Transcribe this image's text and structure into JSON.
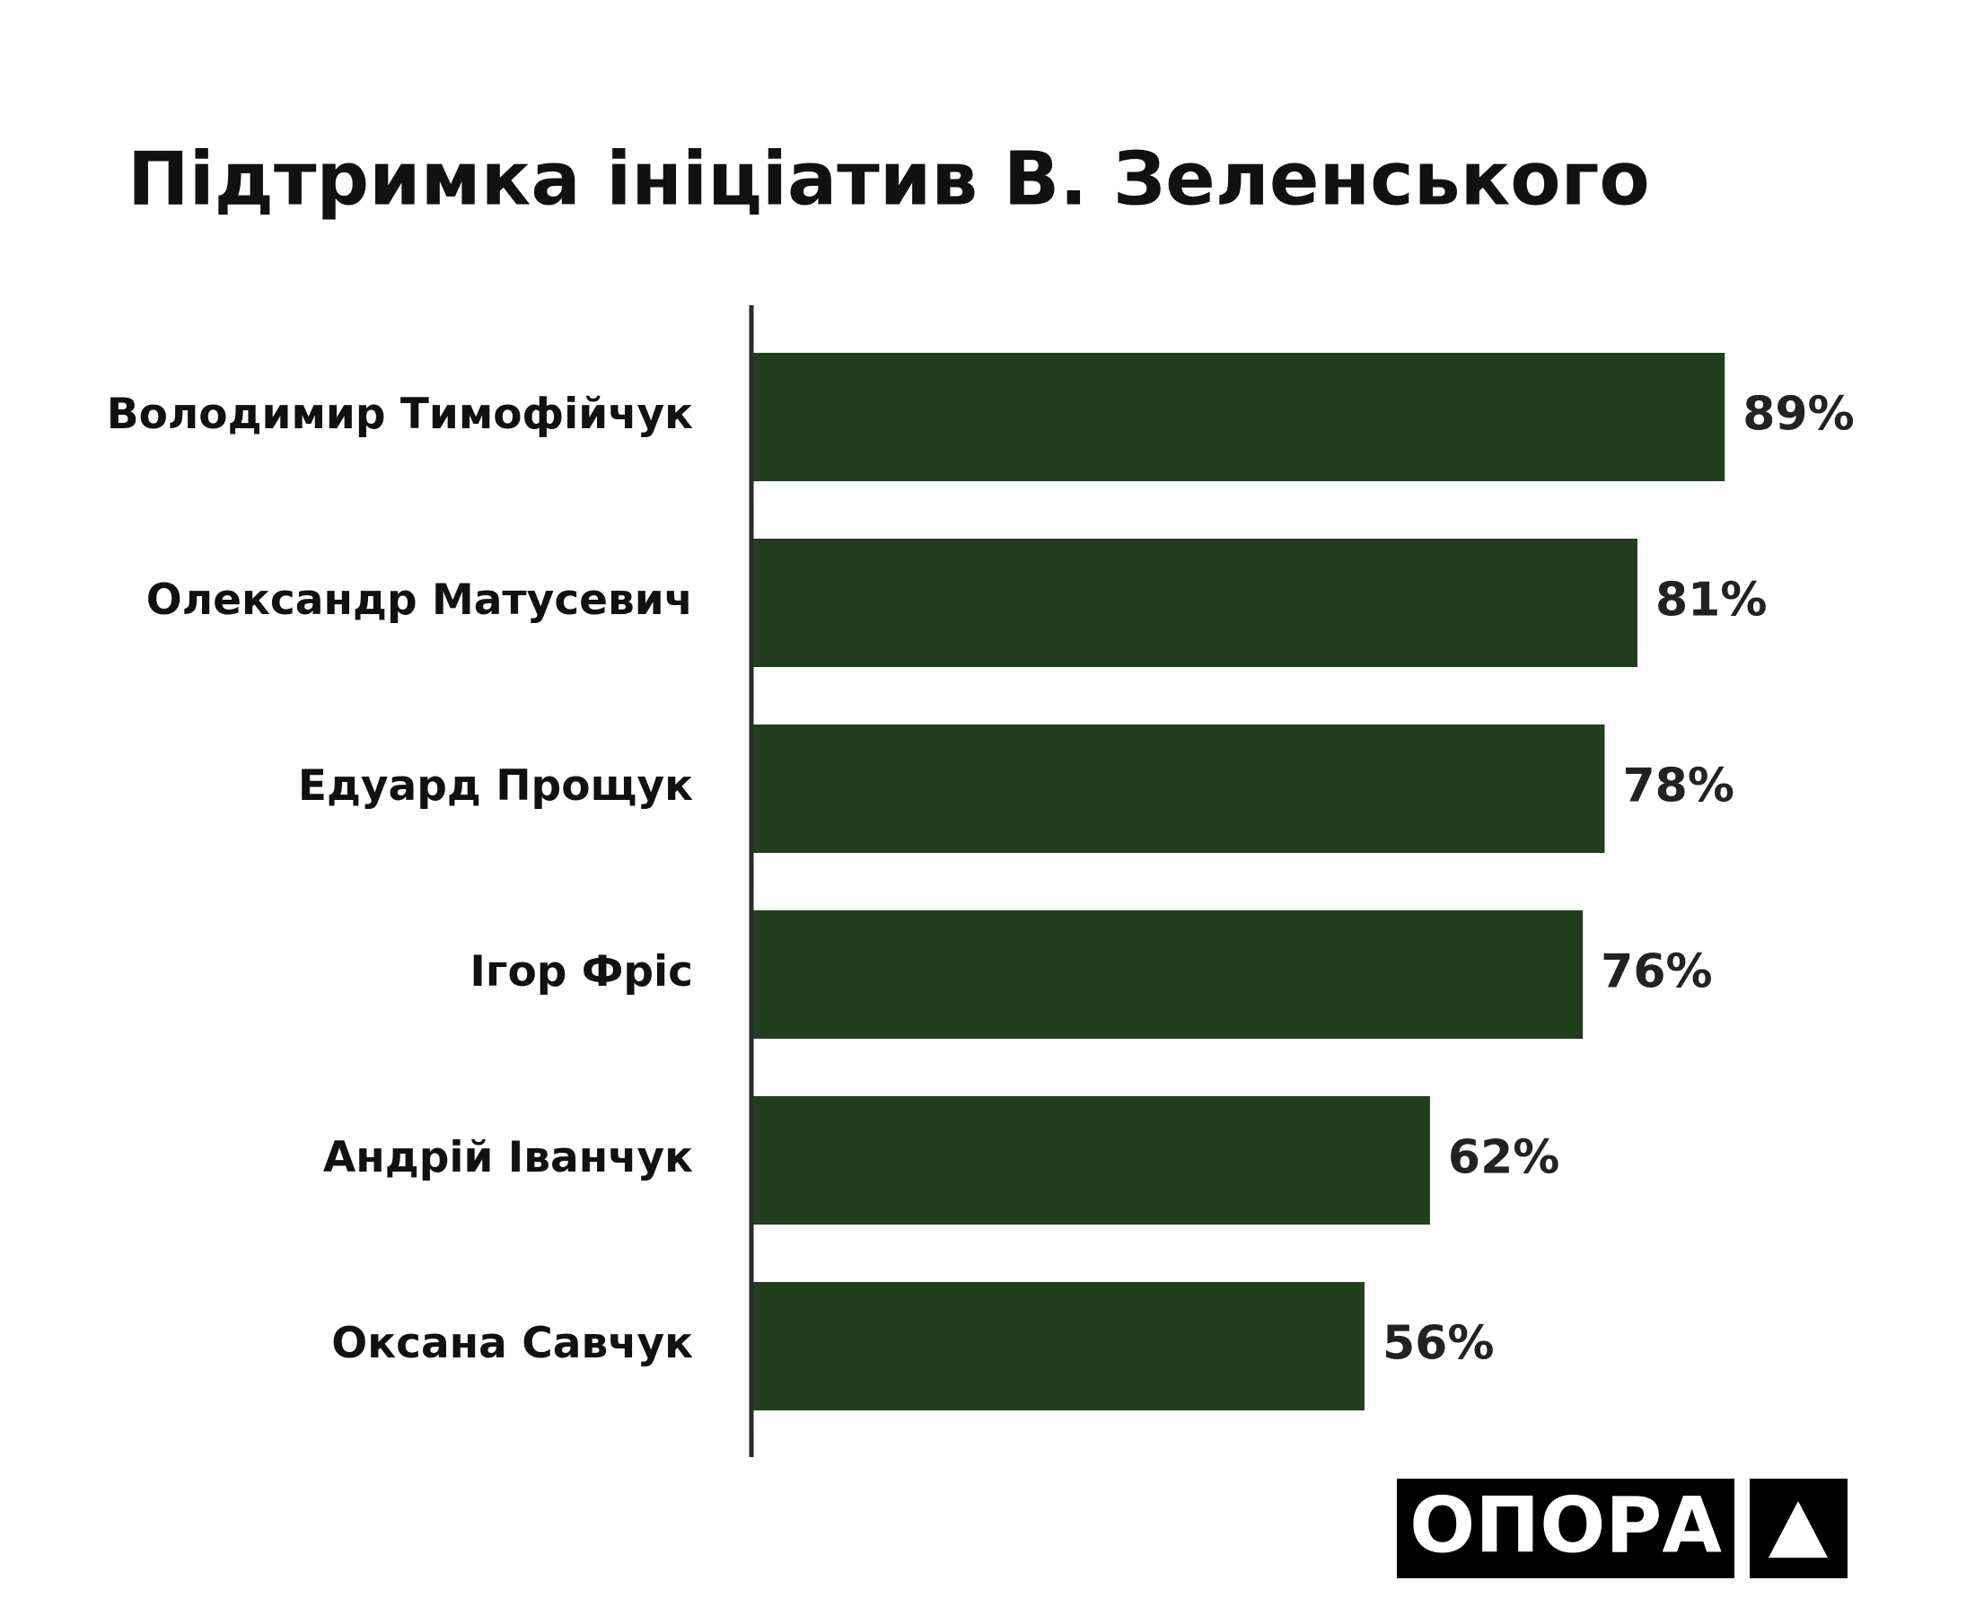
{
  "chart_data": {
    "type": "bar",
    "orientation": "horizontal",
    "title": "Підтримка ініціатив В. Зеленського",
    "categories": [
      "Володимир Тимофійчук",
      "Олександр Матусевич",
      "Едуард Прощук",
      "Ігор Фріс",
      "Андрій Іванчук",
      "Оксана Савчук"
    ],
    "values": [
      89,
      81,
      78,
      76,
      62,
      56
    ],
    "value_labels": [
      "89%",
      "81%",
      "78%",
      "76%",
      "62%",
      "56%"
    ],
    "color": "#213f1d",
    "xlim": [
      0,
      100
    ]
  },
  "logo": "ОПОРА"
}
